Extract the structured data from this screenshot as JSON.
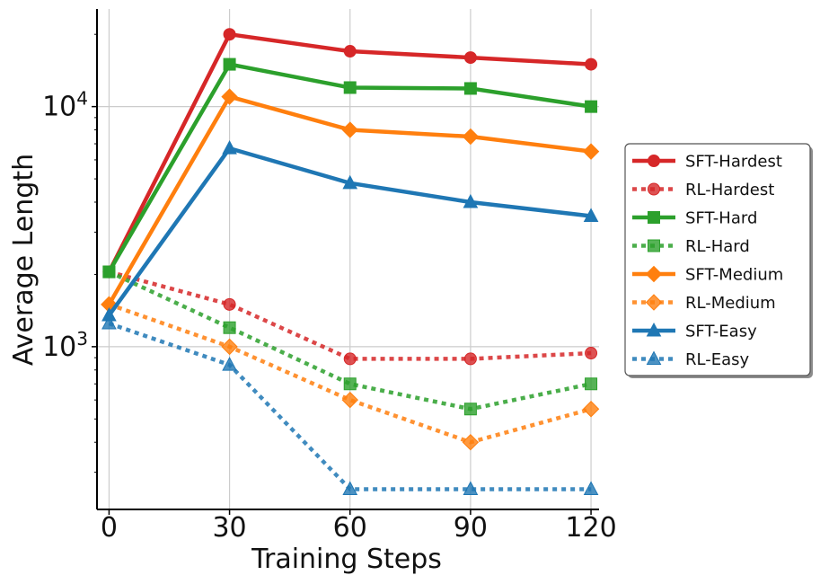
{
  "chart_data": {
    "type": "line",
    "title": "",
    "xlabel": "Training Steps",
    "ylabel": "Average Length",
    "yscale": "log",
    "x": [
      0,
      30,
      60,
      90,
      120
    ],
    "xticks": [
      "0",
      "30",
      "60",
      "90",
      "120"
    ],
    "yticks": [
      {
        "value": 1000,
        "base": "10",
        "exp": "3"
      },
      {
        "value": 10000,
        "base": "10",
        "exp": "4"
      }
    ],
    "xlim": [
      -3,
      122
    ],
    "ylim": [
      210,
      25500
    ],
    "grid": true,
    "legend_position": "center-right",
    "series": [
      {
        "name": "SFT-Hardest",
        "color": "#d62728",
        "style": "solid",
        "marker": "circle",
        "values": [
          2050,
          20000,
          17000,
          16000,
          15000
        ]
      },
      {
        "name": "RL-Hardest",
        "color": "#d62728",
        "style": "dotted",
        "marker": "circle",
        "values": [
          2050,
          1500,
          890,
          890,
          940
        ]
      },
      {
        "name": "SFT-Hard",
        "color": "#2ca02c",
        "style": "solid",
        "marker": "square",
        "values": [
          2050,
          15000,
          12000,
          11900,
          10000
        ]
      },
      {
        "name": "RL-Hard",
        "color": "#2ca02c",
        "style": "dotted",
        "marker": "square",
        "values": [
          2050,
          1200,
          700,
          550,
          700
        ]
      },
      {
        "name": "SFT-Medium",
        "color": "#ff7f0e",
        "style": "solid",
        "marker": "diamond",
        "values": [
          1500,
          11000,
          8000,
          7500,
          6500
        ]
      },
      {
        "name": "RL-Medium",
        "color": "#ff7f0e",
        "style": "dotted",
        "marker": "diamond",
        "values": [
          1500,
          1000,
          600,
          400,
          550
        ]
      },
      {
        "name": "SFT-Easy",
        "color": "#1f77b4",
        "style": "solid",
        "marker": "triangle",
        "values": [
          1350,
          6700,
          4800,
          4000,
          3500
        ]
      },
      {
        "name": "RL-Easy",
        "color": "#1f77b4",
        "style": "dotted",
        "marker": "triangle",
        "values": [
          1250,
          840,
          255,
          255,
          255
        ]
      }
    ]
  }
}
